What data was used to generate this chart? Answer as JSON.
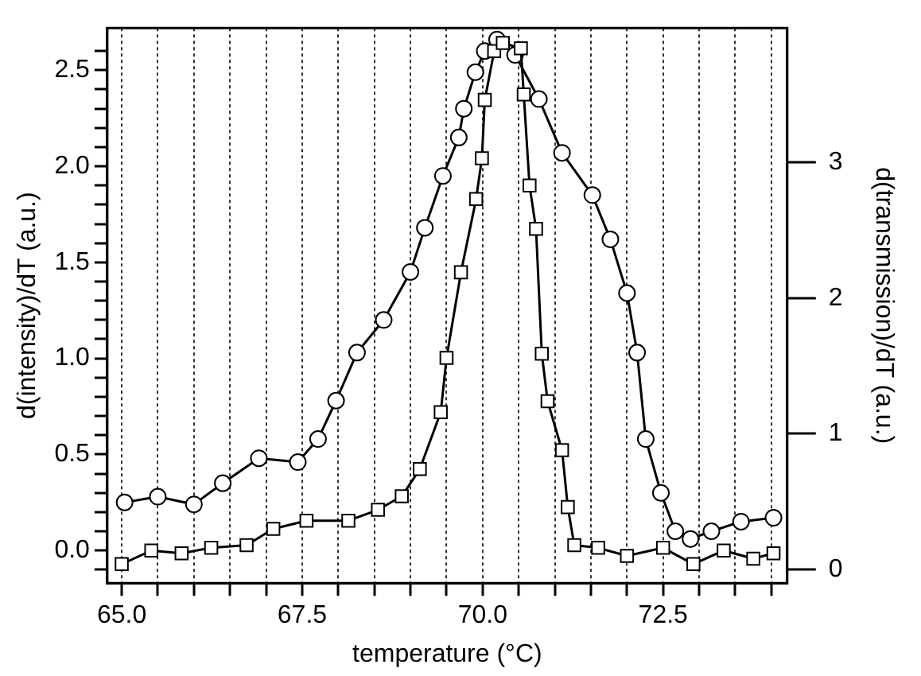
{
  "chart_data": {
    "type": "line",
    "xlabel": "temperature (°C)",
    "ylabel": "d(intensity)/dT (a.u.)",
    "y2label": "d(transmission)/dT (a.u.)",
    "xlim": [
      64.8,
      74.22
    ],
    "xticks": [
      {
        "value": 65,
        "label": "65.0"
      },
      {
        "value": 65.5,
        "label": null
      },
      {
        "value": 66,
        "label": null
      },
      {
        "value": 66.5,
        "label": null
      },
      {
        "value": 67,
        "label": null
      },
      {
        "value": 67.5,
        "label": "67.5"
      },
      {
        "value": 68,
        "label": null
      },
      {
        "value": 68.5,
        "label": null
      },
      {
        "value": 69,
        "label": null
      },
      {
        "value": 69.5,
        "label": null
      },
      {
        "value": 70,
        "label": "70.0"
      },
      {
        "value": 70.5,
        "label": null
      },
      {
        "value": 71,
        "label": null
      },
      {
        "value": 71.5,
        "label": null
      },
      {
        "value": 72,
        "label": null
      },
      {
        "value": 72.5,
        "label": "72.5"
      },
      {
        "value": 73,
        "label": null
      },
      {
        "value": 73.5,
        "label": null
      },
      {
        "value": 74,
        "label": null
      }
    ],
    "ylim": [
      -0.17,
      2.72
    ],
    "yticks": [
      {
        "value": -0.1,
        "label": null
      },
      {
        "value": 0,
        "label": "0.0"
      },
      {
        "value": 0.1,
        "label": null
      },
      {
        "value": 0.2,
        "label": null
      },
      {
        "value": 0.3,
        "label": null
      },
      {
        "value": 0.4,
        "label": null
      },
      {
        "value": 0.5,
        "label": "0.5"
      },
      {
        "value": 0.6,
        "label": null
      },
      {
        "value": 0.7,
        "label": null
      },
      {
        "value": 0.8,
        "label": null
      },
      {
        "value": 0.9,
        "label": null
      },
      {
        "value": 1,
        "label": "1.0"
      },
      {
        "value": 1.1,
        "label": null
      },
      {
        "value": 1.2,
        "label": null
      },
      {
        "value": 1.3,
        "label": null
      },
      {
        "value": 1.4,
        "label": null
      },
      {
        "value": 1.5,
        "label": "1.5"
      },
      {
        "value": 1.6,
        "label": null
      },
      {
        "value": 1.7,
        "label": null
      },
      {
        "value": 1.8,
        "label": null
      },
      {
        "value": 1.9,
        "label": null
      },
      {
        "value": 2,
        "label": "2.0"
      },
      {
        "value": 2.1,
        "label": null
      },
      {
        "value": 2.2,
        "label": null
      },
      {
        "value": 2.3,
        "label": null
      },
      {
        "value": 2.4,
        "label": null
      },
      {
        "value": 2.5,
        "label": "2.5"
      },
      {
        "value": 2.6,
        "label": null
      }
    ],
    "y2lim": [
      -0.1,
      3.99
    ],
    "y2ticks": [
      0,
      1,
      2,
      3
    ],
    "grid": "x",
    "legend": false,
    "line_style": "solid",
    "series": [
      {
        "color": "#000000",
        "marker": "circle",
        "x": [
          65.04,
          65.5,
          66.0,
          66.4,
          66.9,
          67.44,
          67.72,
          67.97,
          68.26,
          68.63,
          69.0,
          69.2,
          69.45,
          69.67,
          69.74,
          69.9,
          70.03,
          70.2,
          70.45,
          70.78,
          71.1,
          71.52,
          71.77,
          72.0,
          72.14,
          72.26,
          72.47,
          72.67,
          72.88,
          73.17,
          73.58,
          74.03
        ],
        "values": [
          0.25,
          0.28,
          0.24,
          0.35,
          0.48,
          0.46,
          0.58,
          0.78,
          1.03,
          1.2,
          1.45,
          1.68,
          1.95,
          2.15,
          2.3,
          2.49,
          2.6,
          2.66,
          2.58,
          2.35,
          2.07,
          1.85,
          1.62,
          1.34,
          1.03,
          0.58,
          0.3,
          0.1,
          0.06,
          0.1,
          0.15,
          0.17
        ]
      },
      {
        "color": "#000000",
        "marker": "square",
        "axis": "y2",
        "x": [
          65.0,
          65.41,
          65.83,
          66.24,
          66.73,
          67.1,
          67.56,
          68.14,
          68.55,
          68.88,
          69.13,
          69.42,
          69.5,
          69.7,
          69.91,
          69.99,
          70.03,
          70.16,
          70.28,
          70.53,
          70.57,
          70.65,
          70.74,
          70.82,
          70.9,
          71.1,
          71.18,
          71.27,
          71.6,
          72.0,
          72.5,
          72.92,
          73.34,
          73.75,
          74.03
        ],
        "values": [
          0.04,
          0.14,
          0.12,
          0.16,
          0.18,
          0.3,
          0.36,
          0.36,
          0.44,
          0.54,
          0.74,
          1.16,
          1.56,
          2.19,
          2.73,
          3.03,
          3.46,
          3.82,
          3.88,
          3.84,
          3.5,
          2.83,
          2.51,
          1.59,
          1.24,
          0.88,
          0.46,
          0.18,
          0.16,
          0.1,
          0.16,
          0.04,
          0.14,
          0.08,
          0.12
        ]
      }
    ]
  }
}
